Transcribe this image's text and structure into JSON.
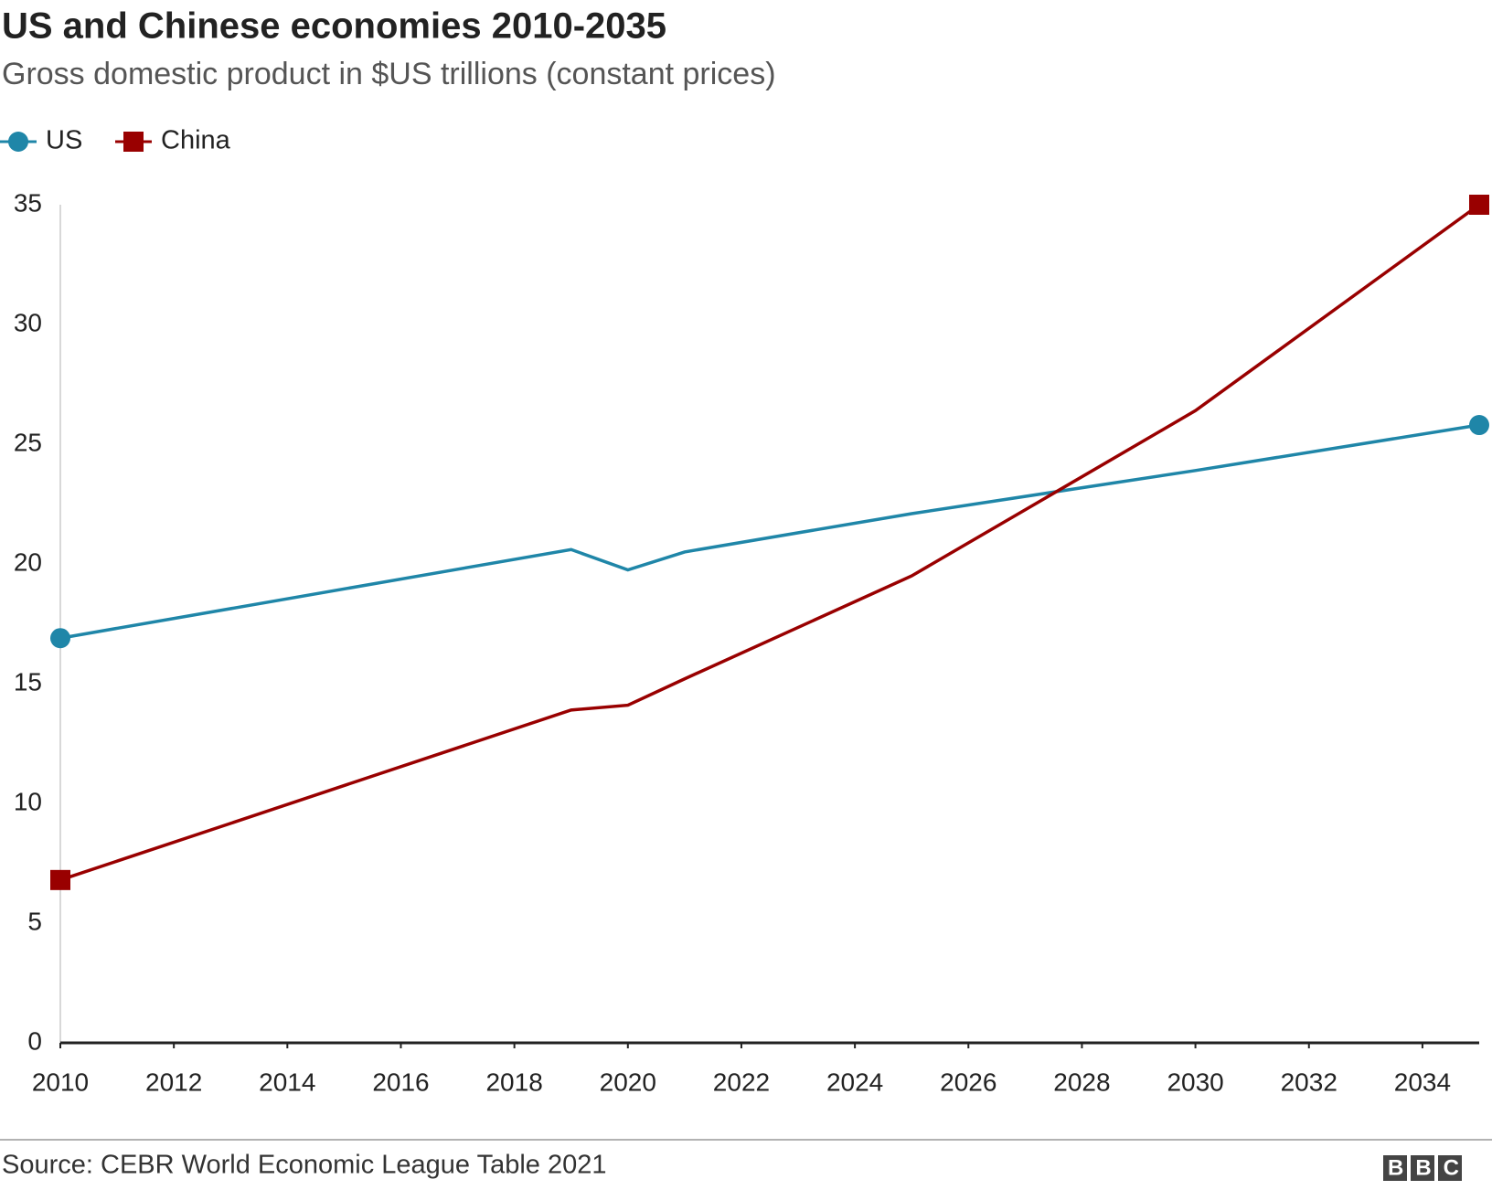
{
  "chart_data": {
    "type": "line",
    "title": "US and Chinese economies 2010-2035",
    "subtitle": "Gross domestic product in $US trillions (constant prices)",
    "source": "Source: CEBR World Economic League Table 2021",
    "logo": "BBC",
    "x": [
      2010,
      2019,
      2020,
      2021,
      2025,
      2030,
      2035
    ],
    "series": [
      {
        "name": "US",
        "color": "#1f86a8",
        "marker": "circle",
        "values": [
          16.9,
          20.6,
          19.75,
          20.5,
          22.1,
          23.9,
          25.8
        ]
      },
      {
        "name": "China",
        "color": "#990000",
        "marker": "square",
        "values": [
          6.8,
          13.9,
          14.1,
          15.2,
          19.5,
          26.4,
          35.0
        ]
      }
    ],
    "xlim": [
      2010,
      2035
    ],
    "xticks": [
      2010,
      2012,
      2014,
      2016,
      2018,
      2020,
      2022,
      2024,
      2026,
      2028,
      2030,
      2032,
      2034
    ],
    "ylim": [
      0,
      35
    ],
    "yticks": [
      0,
      5,
      10,
      15,
      20,
      25,
      30,
      35
    ],
    "grid": false,
    "legend": "top-left"
  }
}
